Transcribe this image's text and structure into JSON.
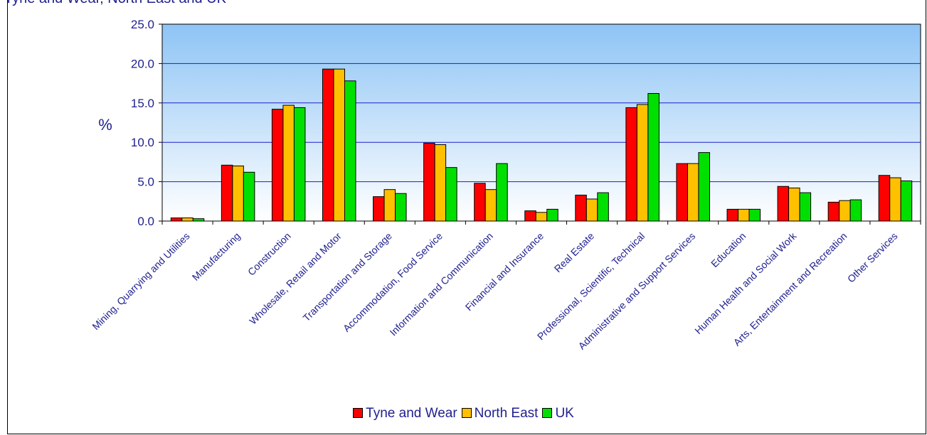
{
  "chart_data": {
    "type": "bar",
    "title": "Tyne and Wear, North East and UK",
    "ylabel": "%",
    "ylim": [
      0,
      25
    ],
    "yticks": [
      "0.0",
      "5.0",
      "10.0",
      "15.0",
      "20.0",
      "25.0"
    ],
    "grid": true,
    "legend_position": "bottom",
    "categories": [
      "Mining, Quarrying and Utilities",
      "Manufacturing",
      "Construction",
      "Wholesale, Retail and Motor",
      "Transportation and Storage",
      "Accommodation, Food Service",
      "Information and Communication",
      "Financial and Insurance",
      "Real Estate",
      "Professional, Scientific, Technical",
      "Administrative and Support Services",
      "Education",
      "Human Health and Social Work",
      "Arts, Entertainment and Recreation",
      "Other Services"
    ],
    "series": [
      {
        "name": "Tyne and Wear",
        "color": "#ff0000",
        "values": [
          0.4,
          7.1,
          14.2,
          19.3,
          3.1,
          9.9,
          4.8,
          1.3,
          3.3,
          14.4,
          7.3,
          1.5,
          4.4,
          2.4,
          5.8
        ]
      },
      {
        "name": "North East",
        "color": "#ffc000",
        "values": [
          0.4,
          7.0,
          14.7,
          19.3,
          4.0,
          9.7,
          4.0,
          1.1,
          2.8,
          14.8,
          7.3,
          1.5,
          4.2,
          2.6,
          5.5
        ]
      },
      {
        "name": "UK",
        "color": "#00e000",
        "values": [
          0.3,
          6.2,
          14.4,
          17.8,
          3.5,
          6.8,
          7.3,
          1.5,
          3.6,
          16.2,
          8.7,
          1.5,
          3.6,
          2.7,
          5.1
        ]
      }
    ]
  }
}
